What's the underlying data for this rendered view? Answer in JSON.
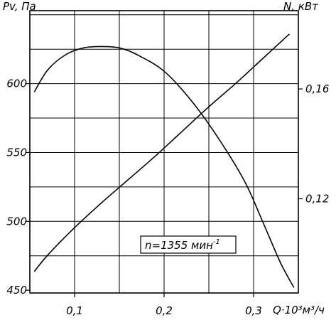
{
  "chart_data": {
    "type": "line",
    "y_left_label": "Pv, Па",
    "y_right_label": "N, кВт",
    "x_label": "Q·10³м³/ч",
    "annotation_prefix": "n=1355 мин",
    "annotation_sup": "-1",
    "x_ticks": [
      "0,1",
      "0,2",
      "0,3"
    ],
    "y_left_ticks": [
      "450",
      "500",
      "550",
      "600"
    ],
    "y_right_ticks": [
      "0,12",
      "0,16"
    ],
    "xlim": [
      0.05,
      0.35
    ],
    "ylim_left": [
      448,
      653
    ],
    "ylim_right": [
      0.0857,
      0.1885
    ],
    "grid": true,
    "series": [
      {
        "axis": "left",
        "x": [
          0.055,
          0.07,
          0.09,
          0.11,
          0.13,
          0.15,
          0.17,
          0.2,
          0.23,
          0.26,
          0.29,
          0.31,
          0.33,
          0.345
        ],
        "y": [
          594,
          610,
          621,
          626,
          627,
          626,
          621,
          609,
          588,
          561,
          529,
          500,
          470,
          452
        ]
      },
      {
        "axis": "right",
        "x": [
          0.055,
          0.07,
          0.1,
          0.13,
          0.16,
          0.19,
          0.22,
          0.25,
          0.28,
          0.31,
          0.34
        ],
        "y": [
          0.0935,
          0.0995,
          0.1095,
          0.1185,
          0.127,
          0.1355,
          0.1445,
          0.1535,
          0.162,
          0.171,
          0.18
        ]
      }
    ]
  }
}
